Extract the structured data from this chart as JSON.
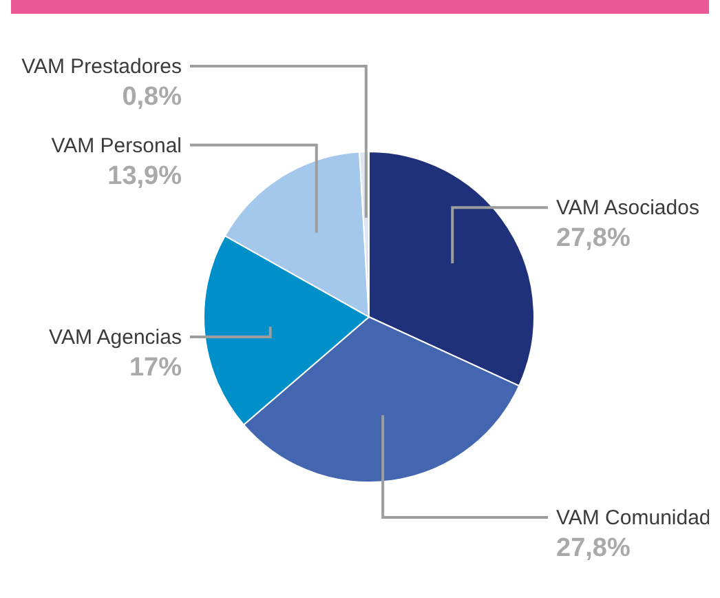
{
  "chart_data": {
    "type": "pie",
    "categories": [
      "VAM Asociados",
      "VAM Comunidad",
      "VAM Agencias",
      "VAM Personal",
      "VAM Prestadores"
    ],
    "values": [
      27.8,
      27.8,
      17,
      13.9,
      0.8
    ],
    "value_labels": [
      "27,8%",
      "27,8%",
      "17%",
      "13,9%",
      "0,8%"
    ],
    "colors": [
      "#1f317a",
      "#4466b0",
      "#0090c9",
      "#a3c8ec",
      "#dfe6f1"
    ]
  }
}
